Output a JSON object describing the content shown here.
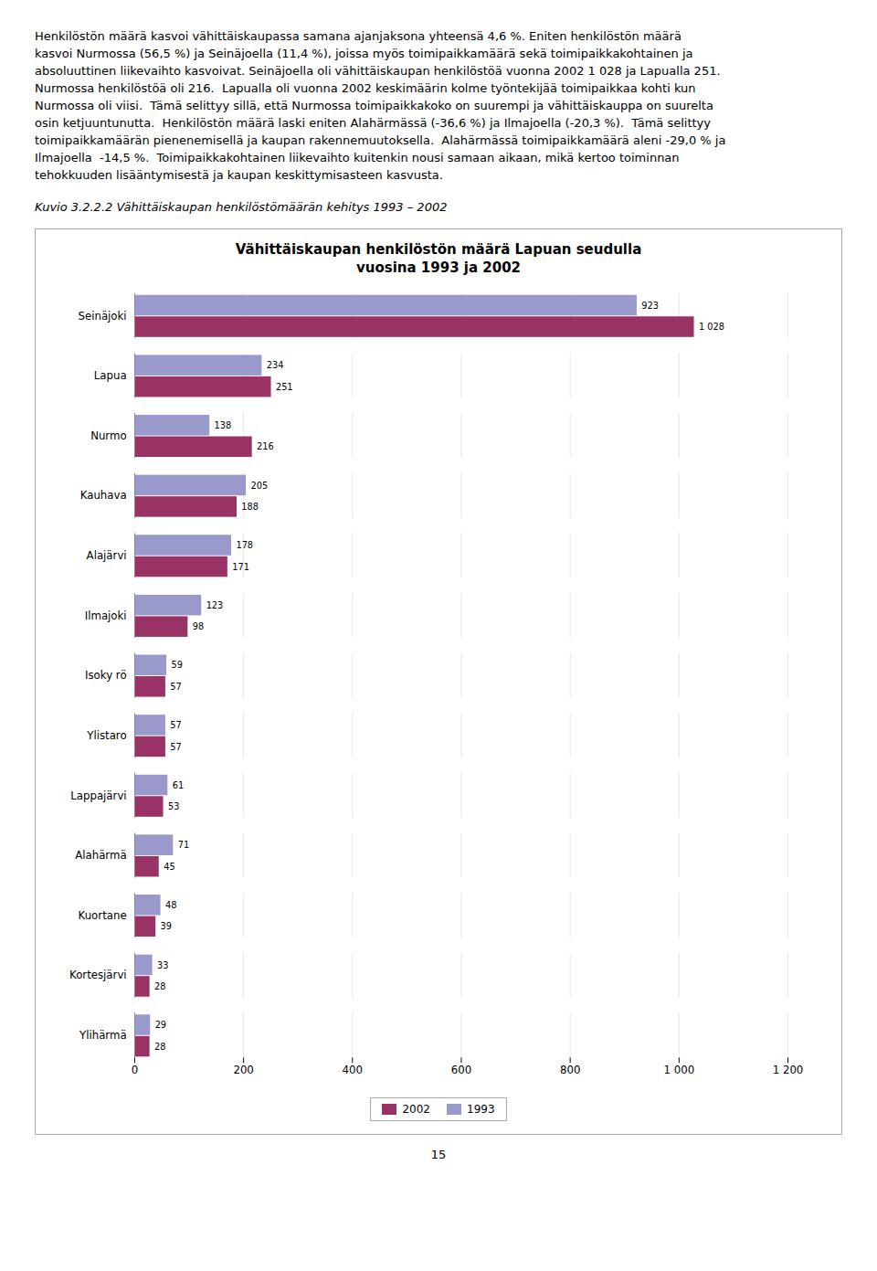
{
  "intro_lines": [
    "Henkilöstön määrä kasvoi vähittäiskaupassa samana ajanjaksona yhteensä 4,6 %. Eniten henkilöstön määrä",
    "kasvoi Nurmossa (56,5 %) ja Seinäjoella (11,4 %), joissa myös toimipaikkamäärä sekä toimipaikkakohtainen ja",
    "absoluuttinen liikevaihto kasvoivat. Seinäjoella oli vähittäiskaupan henkilöstöä vuonna 2002 1 028 ja Lapualla 251.",
    "Nurmossa henkilöstöä oli 216.  Lapualla oli vuonna 2002 keskimäärin kolme työntekijää toimipaikkaa kohti kun",
    "Nurmossa oli viisi.  Tämä selittyy sillä, että Nurmossa toimipaikkakoko on suurempi ja vähittäiskauppa on suurelta",
    "osin ketjuuntunutta.  Henkilöstön määrä laski eniten Alahärmässä (-36,6 %) ja Ilmajoella (-20,3 %).  Tämä selittyy",
    "toimipaikkamäärän pienenemisellä ja kaupan rakennemuutoksella.  Alahärmässä toimipaikkamäärä aleni -29,0 % ja",
    "Ilmajoella  -14,5 %.  Toimipaikkakohtainen liikevaihto kuitenkin nousi samaan aikaan, mikä kertoo toiminnan",
    "tehokkuuden lisääntymisestä ja kaupan keskittymisasteen kasvusta."
  ],
  "caption": "Kuvio 3.2.2.2 Vähittäiskaupan henkilöstömäärän kehitys 1993 – 2002",
  "page_number": "15",
  "chart_data": {
    "type": "bar",
    "orientation": "horizontal",
    "title": "Vähittäiskaupan henkilöstön määrä Lapuan seudulla\nvuosina 1993 ja 2002",
    "categories": [
      "Seinäjoki",
      "Lapua",
      "Nurmo",
      "Kauhava",
      "Alajärvi",
      "Ilmajoki",
      "Isoky rö",
      "Ylistaro",
      "Lappajärvi",
      "Alahärmä",
      "Kuortane",
      "Kortesjärvi",
      "Ylihärmä"
    ],
    "series": [
      {
        "name": "1993",
        "color": "#9999CC",
        "values": [
          923,
          234,
          138,
          205,
          178,
          123,
          59,
          57,
          61,
          71,
          48,
          33,
          29
        ]
      },
      {
        "name": "2002",
        "color": "#993366",
        "values": [
          1028,
          251,
          216,
          188,
          171,
          98,
          57,
          57,
          53,
          45,
          39,
          28,
          28
        ],
        "value_labels": [
          "1 028",
          "251",
          "216",
          "188",
          "171",
          "98",
          "57",
          "57",
          "53",
          "45",
          "39",
          "28",
          "28"
        ]
      }
    ],
    "xlim": [
      0,
      1200
    ],
    "xticks": [
      0,
      200,
      400,
      600,
      800,
      {
        "value": 1000,
        "label": "1 000"
      },
      {
        "value": 1200,
        "label": "1 200"
      }
    ],
    "grid": true,
    "legend": "bottom",
    "data_labels": true
  }
}
